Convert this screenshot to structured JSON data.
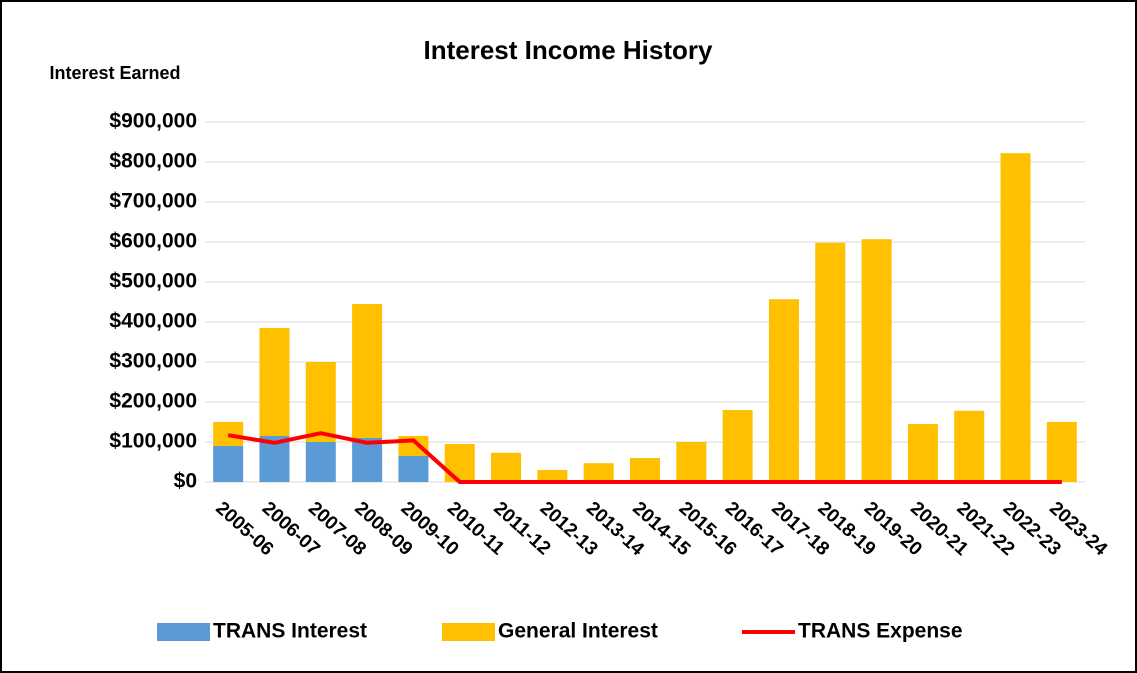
{
  "chart_data": {
    "type": "bar",
    "stacked": true,
    "title": "Interest Income History",
    "y_label": "Interest Earned",
    "categories": [
      "2005-06",
      "2006-07",
      "2007-08",
      "2008-09",
      "2009-10",
      "2010-11",
      "2011-12",
      "2012-13",
      "2013-14",
      "2014-15",
      "2015-16",
      "2016-17",
      "2017-18",
      "2018-19",
      "2019-20",
      "2020-21",
      "2021-22",
      "2022-23",
      "2023-24"
    ],
    "series": [
      {
        "name": "TRANS Interest",
        "type": "bar",
        "color": "#5b9bd5",
        "values": [
          90000,
          115000,
          100000,
          110000,
          65000,
          0,
          0,
          0,
          0,
          0,
          0,
          0,
          0,
          0,
          0,
          0,
          0,
          0,
          0
        ]
      },
      {
        "name": "General Interest",
        "type": "bar",
        "color": "#ffc000",
        "values": [
          60000,
          270000,
          200000,
          335000,
          50000,
          95000,
          73000,
          30000,
          47000,
          60000,
          100000,
          180000,
          457000,
          598000,
          607000,
          145000,
          178000,
          822000,
          150000
        ]
      },
      {
        "name": "TRANS Expense",
        "type": "line",
        "color": "#ff0000",
        "values": [
          117000,
          98000,
          122000,
          98000,
          104000,
          0,
          0,
          0,
          0,
          0,
          0,
          0,
          0,
          0,
          0,
          0,
          0,
          0,
          0
        ]
      }
    ],
    "ylim": [
      0,
      900000
    ],
    "yticks": [
      {
        "value": 0,
        "label": "$0"
      },
      {
        "value": 100000,
        "label": "$100,000"
      },
      {
        "value": 200000,
        "label": "$200,000"
      },
      {
        "value": 300000,
        "label": "$300,000"
      },
      {
        "value": 400000,
        "label": "$400,000"
      },
      {
        "value": 500000,
        "label": "$500,000"
      },
      {
        "value": 600000,
        "label": "$600,000"
      },
      {
        "value": 700000,
        "label": "$700,000"
      },
      {
        "value": 800000,
        "label": "$800,000"
      },
      {
        "value": 900000,
        "label": "$900,000"
      }
    ],
    "grid": true,
    "legend": "bottom"
  }
}
